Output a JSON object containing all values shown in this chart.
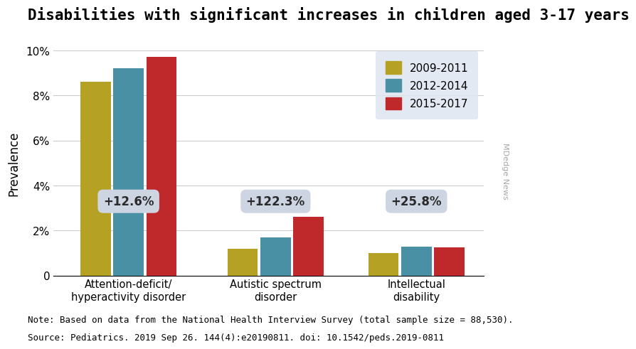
{
  "title": "Disabilities with significant increases in children aged 3-17 years",
  "categories": [
    "Attention-deficit/\nhyperactivity disorder",
    "Autistic spectrum\ndisorder",
    "Intellectual\ndisability"
  ],
  "series": {
    "2009-2011": [
      8.6,
      1.2,
      1.0
    ],
    "2012-2014": [
      9.2,
      1.7,
      1.3
    ],
    "2015-2017": [
      9.7,
      2.6,
      1.25
    ]
  },
  "colors": {
    "2009-2011": "#b5a224",
    "2012-2014": "#4a90a4",
    "2015-2017": "#c0292b"
  },
  "annotations": [
    "+12.6%",
    "+122.3%",
    "+25.8%"
  ],
  "ylabel": "Prevalence",
  "ylim": [
    0,
    10
  ],
  "yticks": [
    0,
    2,
    4,
    6,
    8,
    10
  ],
  "yticklabels": [
    "0",
    "2%",
    "4%",
    "6%",
    "8%",
    "10%"
  ],
  "note": "Note: Based on data from the National Health Interview Survey (total sample size = 88,530).",
  "source": "Source: Pediatrics. 2019 Sep 26. 144(4):e20190811. doi: 10.1542/peds.2019-0811",
  "watermark": "MDedge News",
  "legend_facecolor": "#dce4ef",
  "annotation_facecolor": "#cdd5e3",
  "background_color": "#ffffff",
  "gc": [
    0.38,
    1.32,
    2.22
  ],
  "bar_width": 0.21,
  "offsets": [
    -0.21,
    0.0,
    0.21
  ],
  "xlim": [
    -0.1,
    2.65
  ],
  "ann_y": 3.3,
  "title_fontsize": 15,
  "legend_fontsize": 11,
  "axis_fontsize": 11,
  "ylabel_fontsize": 12,
  "ann_fontsize": 12,
  "note_fontsize": 9,
  "watermark_fontsize": 8
}
